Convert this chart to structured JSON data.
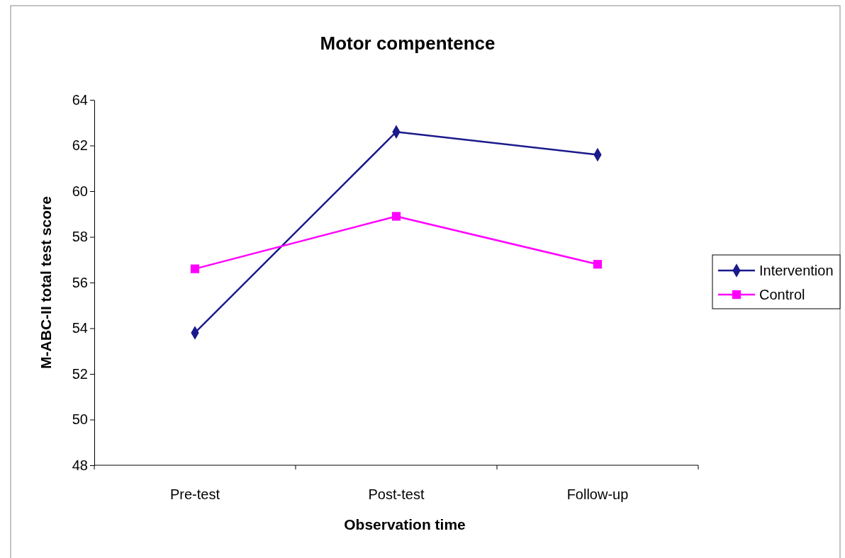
{
  "chart_data": {
    "type": "line",
    "title": "Motor compentence",
    "xlabel": "Observation time",
    "ylabel": "M-ABC-II total test score",
    "categories": [
      "Pre-test",
      "Post-test",
      "Follow-up"
    ],
    "series": [
      {
        "name": "Intervention",
        "color": "#1a1a8c",
        "marker": "diamond",
        "values": [
          53.8,
          62.6,
          61.6
        ]
      },
      {
        "name": "Control",
        "color": "#ff00ff",
        "marker": "square",
        "values": [
          56.6,
          58.9,
          56.8
        ]
      }
    ],
    "ylim": [
      48,
      64
    ],
    "yticks": [
      48,
      50,
      52,
      54,
      56,
      58,
      60,
      62,
      64
    ],
    "grid": false,
    "legend": "right",
    "line_style": "solid"
  }
}
